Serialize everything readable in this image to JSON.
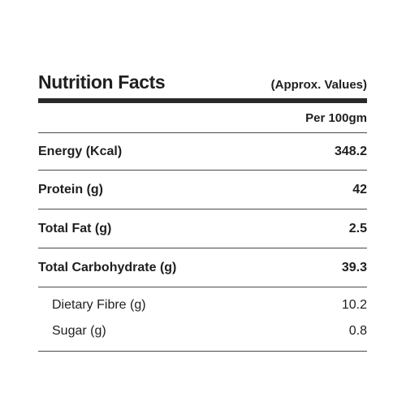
{
  "panel": {
    "title": "Nutrition Facts",
    "subtitle": "(Approx. Values)",
    "per_label": "Per 100gm"
  },
  "nutrients": [
    {
      "label": "Energy (Kcal)",
      "value": "348.2"
    },
    {
      "label": "Protein (g)",
      "value": "42"
    },
    {
      "label": "Total Fat (g)",
      "value": "2.5"
    },
    {
      "label": "Total Carbohydrate (g)",
      "value": "39.3"
    }
  ],
  "sub_nutrients": [
    {
      "label": "Dietary Fibre (g)",
      "value": "10.2"
    },
    {
      "label": "Sugar (g)",
      "value": "0.8"
    }
  ],
  "colors": {
    "text": "#1f1f1f",
    "rule": "#2a2a2a",
    "background": "#ffffff"
  }
}
